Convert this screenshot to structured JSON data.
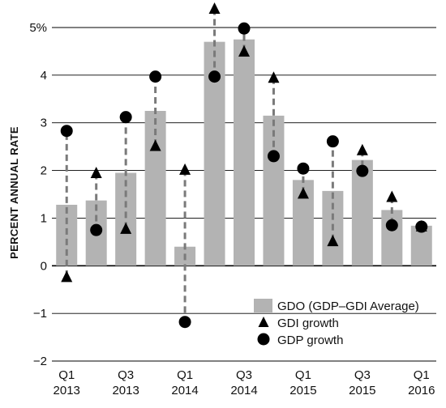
{
  "chart_data": {
    "type": "bar",
    "ylabel": "PERCENT ANNUAL RATE",
    "ylim": [
      -2,
      5
    ],
    "yticks": [
      {
        "value": 5,
        "label": "5%"
      },
      {
        "value": 4,
        "label": "4"
      },
      {
        "value": 3,
        "label": "3"
      },
      {
        "value": 2,
        "label": "2"
      },
      {
        "value": 1,
        "label": "1"
      },
      {
        "value": 0,
        "label": "0"
      },
      {
        "value": -1,
        "label": "−1"
      },
      {
        "value": -2,
        "label": "−2"
      }
    ],
    "grid": true,
    "legend_position": "bottom-right",
    "categories": [
      "Q1 2013",
      "Q2 2013",
      "Q3 2013",
      "Q4 2013",
      "Q1 2014",
      "Q2 2014",
      "Q3 2014",
      "Q4 2014",
      "Q1 2015",
      "Q2 2015",
      "Q3 2015",
      "Q4 2015",
      "Q1 2016"
    ],
    "xtick_labels": [
      {
        "index": 0,
        "line1": "Q1",
        "line2": "2013"
      },
      {
        "index": 2,
        "line1": "Q3",
        "line2": "2013"
      },
      {
        "index": 4,
        "line1": "Q1",
        "line2": "2014"
      },
      {
        "index": 6,
        "line1": "Q3",
        "line2": "2014"
      },
      {
        "index": 8,
        "line1": "Q1",
        "line2": "2015"
      },
      {
        "index": 10,
        "line1": "Q3",
        "line2": "2015"
      },
      {
        "index": 12,
        "line1": "Q1",
        "line2": "2016"
      }
    ],
    "series": [
      {
        "name": "GDO (GDP–GDI Average)",
        "kind": "bar",
        "values": [
          1.28,
          1.37,
          1.95,
          3.25,
          0.4,
          4.7,
          4.75,
          3.15,
          1.8,
          1.57,
          2.22,
          1.17,
          0.84
        ]
      },
      {
        "name": "GDI growth",
        "kind": "triangle",
        "values": [
          -0.23,
          1.95,
          0.78,
          2.52,
          2.02,
          5.4,
          4.5,
          3.95,
          1.52,
          0.52,
          2.43,
          1.45,
          0.83
        ]
      },
      {
        "name": "GDP growth",
        "kind": "circle",
        "values": [
          2.83,
          0.75,
          3.12,
          3.97,
          -1.18,
          3.97,
          4.98,
          2.3,
          2.04,
          2.61,
          1.99,
          0.85,
          0.82
        ]
      }
    ],
    "colors": {
      "bar": "#b3b3b3",
      "marker": "#000000",
      "connector": "#7a7a7a",
      "grid": "#000000"
    }
  }
}
